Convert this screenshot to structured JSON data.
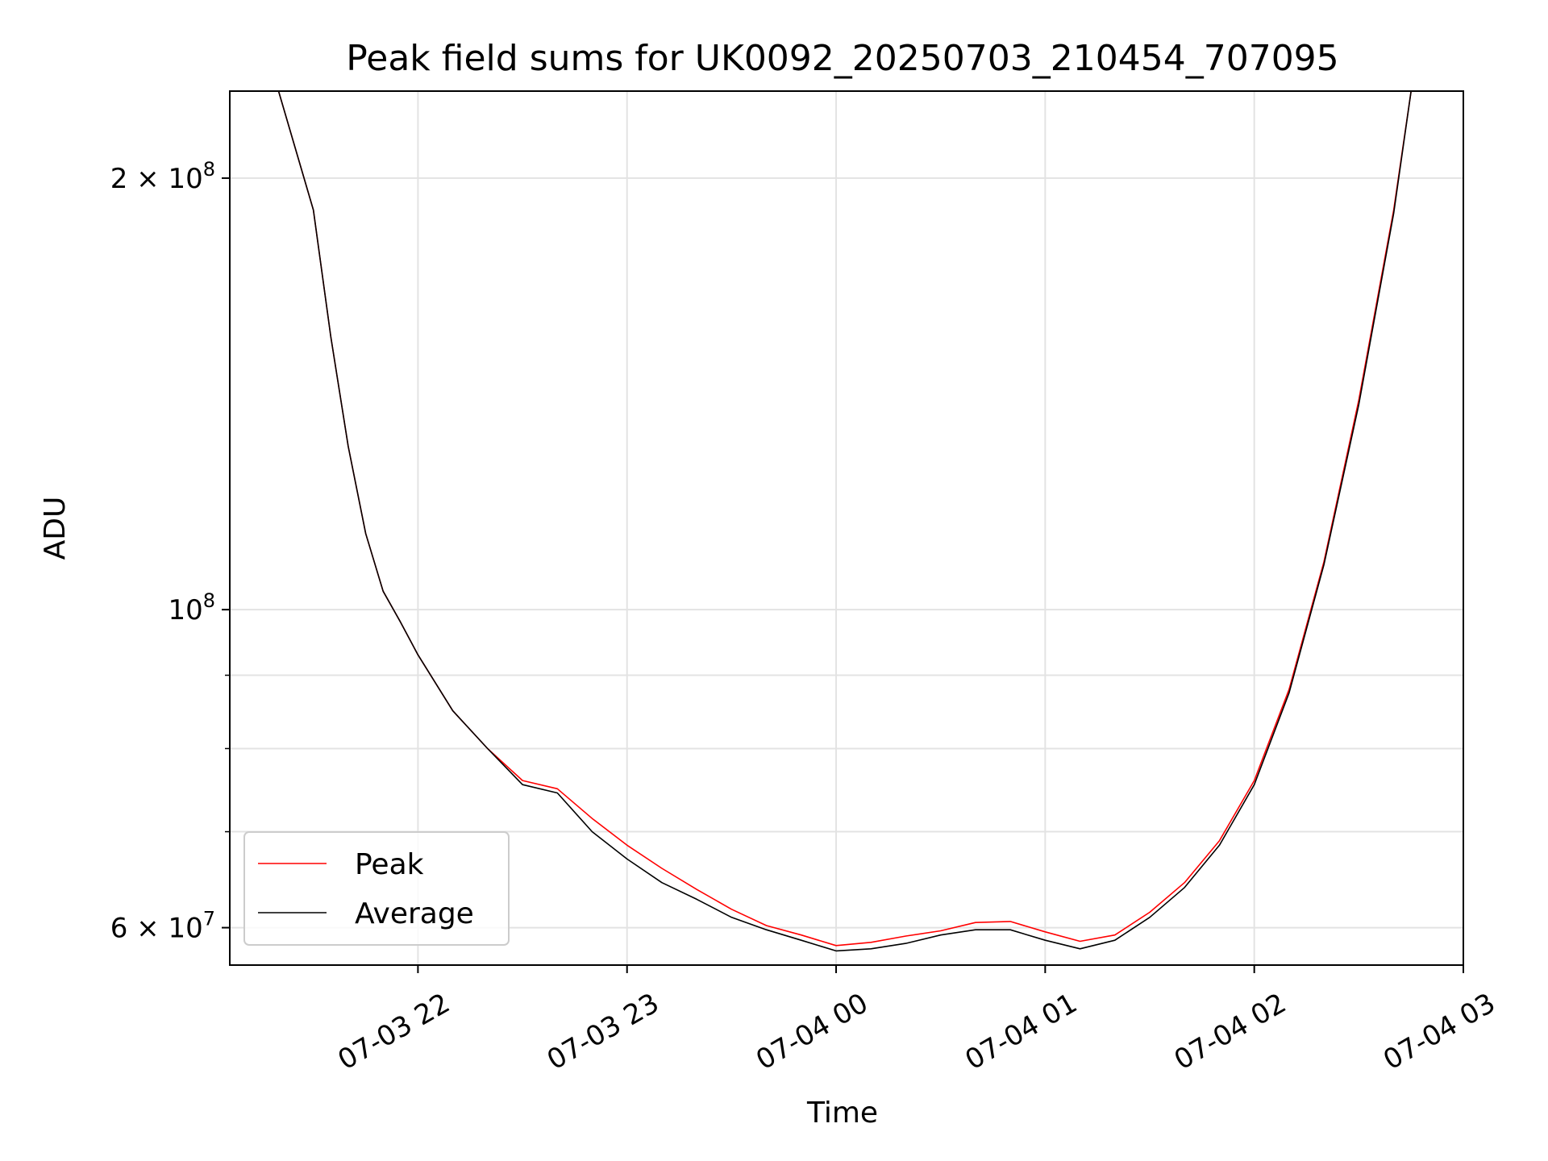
{
  "chart_data": {
    "type": "line",
    "title": "Peak field sums for UK0092_20250703_210454_707095",
    "xlabel": "Time",
    "ylabel": "ADU",
    "x_axis": {
      "scale": "time",
      "xlim": [
        "2025-07-03T21:06",
        "2025-07-04T03:00"
      ]
    },
    "y_axis": {
      "scale": "log",
      "ylim": [
        56500000,
        230000000
      ]
    },
    "grid": true,
    "legend": {
      "placement": "lower-left",
      "entries": [
        "Peak",
        "Average"
      ]
    },
    "x_ticks": [
      "07-03 22",
      "07-03 23",
      "07-04 00",
      "07-04 01",
      "07-04 02",
      "07-04 03"
    ],
    "x_tick_values": [
      "2025-07-03T22:00",
      "2025-07-03T23:00",
      "2025-07-04T00:00",
      "2025-07-04T01:00",
      "2025-07-04T02:00",
      "2025-07-04T03:00"
    ],
    "y_ticks": [
      {
        "value": 200000000,
        "base": "2 × 10",
        "exp": "8"
      },
      {
        "value": 100000000,
        "base": "10",
        "exp": "8"
      },
      {
        "value": 60000000,
        "base": "6 × 10",
        "exp": "7"
      }
    ],
    "y_minor_ticks": [
      70000000,
      80000000,
      90000000
    ],
    "x": [
      "21:20",
      "21:30",
      "21:35",
      "21:40",
      "21:45",
      "21:50",
      "21:55",
      "22:00",
      "22:10",
      "22:20",
      "22:30",
      "22:40",
      "22:50",
      "23:00",
      "23:10",
      "23:20",
      "23:30",
      "23:40",
      "23:50",
      "00:00",
      "00:10",
      "00:20",
      "00:30",
      "00:40",
      "00:50",
      "01:00",
      "01:10",
      "01:20",
      "01:30",
      "01:40",
      "01:50",
      "02:00",
      "02:10",
      "02:20",
      "02:30",
      "02:40",
      "02:45"
    ],
    "series": [
      {
        "name": "Peak",
        "color": "#ff0000",
        "values": [
          230000000,
          190000000,
          155000000,
          130000000,
          113000000,
          103000000,
          98000000,
          93000000,
          85000000,
          80000000,
          76000000,
          75000000,
          71500000,
          68500000,
          66000000,
          63800000,
          61800000,
          60200000,
          59300000,
          58300000,
          58600000,
          59200000,
          59700000,
          60500000,
          60600000,
          59600000,
          58700000,
          59300000,
          61500000,
          64500000,
          69000000,
          76000000,
          88000000,
          108000000,
          140000000,
          190000000,
          230000000
        ]
      },
      {
        "name": "Average",
        "color": "#000000",
        "values": [
          230000000,
          190000000,
          155000000,
          130000000,
          113000000,
          103000000,
          98000000,
          93000000,
          85000000,
          80000000,
          75500000,
          74500000,
          70000000,
          67000000,
          64500000,
          62800000,
          61000000,
          59800000,
          58800000,
          57800000,
          58000000,
          58500000,
          59300000,
          59800000,
          59800000,
          58800000,
          58000000,
          58800000,
          61000000,
          64000000,
          68500000,
          75500000,
          87500000,
          107500000,
          139000000,
          189000000,
          230000000
        ]
      }
    ]
  }
}
